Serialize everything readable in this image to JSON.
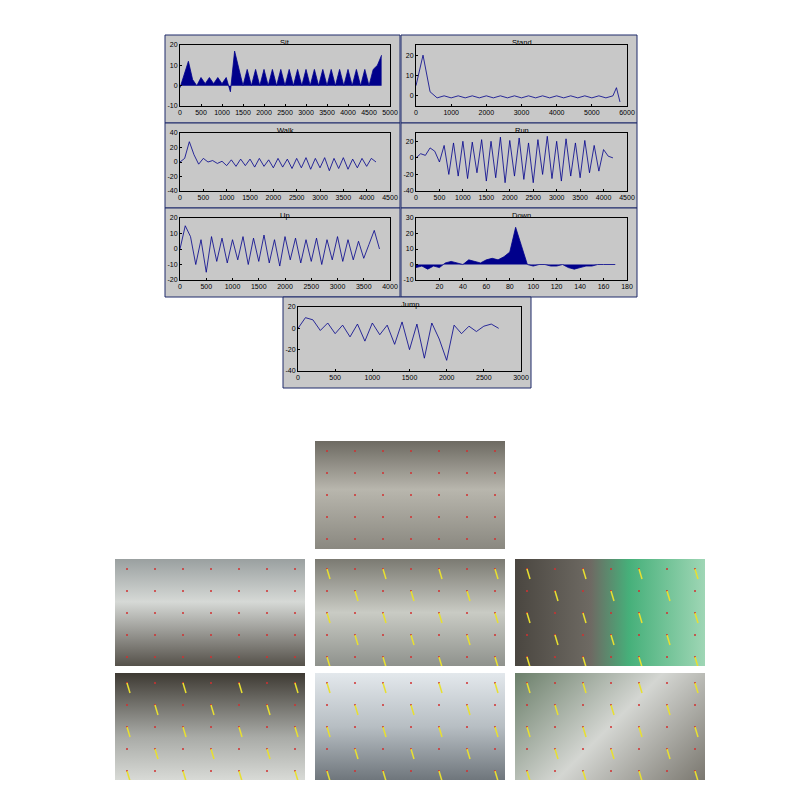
{
  "chart_data": [
    {
      "type": "area",
      "title": "Sit",
      "color": "#00008b",
      "x": [
        0,
        100,
        200,
        300,
        400,
        500,
        600,
        700,
        800,
        900,
        1000,
        1100,
        1200,
        1300,
        1400,
        1500,
        1600,
        1700,
        1800,
        1900,
        2000,
        2100,
        2200,
        2300,
        2400,
        2500,
        2600,
        2700,
        2800,
        2900,
        3000,
        3100,
        3200,
        3300,
        3400,
        3500,
        3600,
        3700,
        3800,
        3900,
        4000,
        4100,
        4200,
        4300,
        4400,
        4500,
        4600,
        4700,
        4800
      ],
      "values": [
        -1,
        5,
        12,
        3,
        0,
        4,
        1,
        4,
        1,
        4,
        1,
        4,
        -3,
        17,
        8,
        0,
        8,
        0,
        8,
        0,
        8,
        0,
        8,
        0,
        8,
        0,
        8,
        0,
        8,
        0,
        8,
        0,
        8,
        0,
        8,
        0,
        8,
        0,
        8,
        0,
        8,
        0,
        8,
        0,
        8,
        0,
        8,
        10,
        15
      ],
      "xlim": [
        0,
        5000
      ],
      "xticks": [
        0,
        500,
        1000,
        1500,
        2000,
        2500,
        3000,
        3500,
        4000,
        4500,
        5000
      ],
      "ylim": [
        -10,
        20
      ],
      "yticks": [
        -10,
        0,
        10,
        20
      ]
    },
    {
      "type": "line",
      "title": "Stand",
      "color": "#00008b",
      "x": [
        0,
        200,
        400,
        600,
        800,
        1000,
        1200,
        1400,
        1600,
        1800,
        2000,
        2200,
        2400,
        2600,
        2800,
        3000,
        3200,
        3400,
        3600,
        3800,
        4000,
        4200,
        4400,
        4600,
        4800,
        5000,
        5200,
        5400,
        5600,
        5700,
        5800
      ],
      "values": [
        5,
        20,
        2,
        -1,
        0,
        -1,
        0,
        -1,
        0,
        -1,
        0,
        -1,
        0,
        -1,
        0,
        -1,
        0,
        -1,
        0,
        -1,
        0,
        -1,
        0,
        -1,
        0,
        -1,
        0,
        -1,
        0,
        4,
        -3
      ],
      "xlim": [
        0,
        6000
      ],
      "xticks": [
        0,
        1000,
        2000,
        3000,
        4000,
        5000,
        6000
      ],
      "ylim": [
        -5,
        25
      ],
      "yticks": [
        0,
        10,
        20
      ]
    },
    {
      "type": "line",
      "title": "Walk",
      "color": "#00008b",
      "x": [
        0,
        100,
        200,
        300,
        400,
        500,
        600,
        700,
        800,
        900,
        1000,
        1100,
        1200,
        1300,
        1400,
        1500,
        1600,
        1700,
        1800,
        1900,
        2000,
        2100,
        2200,
        2300,
        2400,
        2500,
        2600,
        2700,
        2800,
        2900,
        3000,
        3100,
        3200,
        3300,
        3400,
        3500,
        3600,
        3700,
        3800,
        3900,
        4000,
        4100,
        4200
      ],
      "values": [
        0,
        5,
        28,
        10,
        -3,
        5,
        0,
        2,
        -2,
        1,
        -5,
        3,
        -6,
        4,
        -5,
        4,
        -7,
        5,
        -6,
        3,
        -8,
        5,
        -7,
        4,
        -9,
        5,
        -8,
        6,
        -10,
        5,
        -8,
        6,
        -12,
        5,
        -9,
        6,
        -10,
        4,
        -8,
        5,
        -6,
        5,
        0
      ],
      "xlim": [
        0,
        4500
      ],
      "xticks": [
        0,
        500,
        1000,
        1500,
        2000,
        2500,
        3000,
        3500,
        4000,
        4500
      ],
      "ylim": [
        -40,
        40
      ],
      "yticks": [
        -40,
        -20,
        0,
        20,
        40
      ]
    },
    {
      "type": "line",
      "title": "Run",
      "color": "#00008b",
      "x": [
        0,
        100,
        200,
        300,
        400,
        500,
        600,
        700,
        800,
        900,
        1000,
        1100,
        1200,
        1300,
        1400,
        1500,
        1600,
        1700,
        1800,
        1900,
        2000,
        2100,
        2200,
        2300,
        2400,
        2500,
        2600,
        2700,
        2800,
        2900,
        3000,
        3100,
        3200,
        3300,
        3400,
        3500,
        3600,
        3700,
        3800,
        3900,
        4000,
        4100,
        4200
      ],
      "values": [
        0,
        5,
        3,
        12,
        8,
        -5,
        15,
        -20,
        18,
        -22,
        20,
        -25,
        19,
        -18,
        22,
        -28,
        20,
        -24,
        25,
        -30,
        21,
        -22,
        24,
        -26,
        18,
        -30,
        22,
        -20,
        26,
        -25,
        20,
        -28,
        23,
        -22,
        18,
        -24,
        21,
        -18,
        15,
        -16,
        10,
        2,
        0
      ],
      "xlim": [
        0,
        4500
      ],
      "xticks": [
        0,
        500,
        1000,
        1500,
        2000,
        2500,
        3000,
        3500,
        4000,
        4500
      ],
      "ylim": [
        -40,
        30
      ],
      "yticks": [
        -40,
        -20,
        0,
        20
      ]
    },
    {
      "type": "line",
      "title": "Up",
      "color": "#00008b",
      "x": [
        0,
        100,
        200,
        300,
        400,
        500,
        600,
        700,
        800,
        900,
        1000,
        1100,
        1200,
        1300,
        1400,
        1500,
        1600,
        1700,
        1800,
        1900,
        2000,
        2100,
        2200,
        2300,
        2400,
        2500,
        2600,
        2700,
        2800,
        2900,
        3000,
        3100,
        3200,
        3300,
        3400,
        3500,
        3600,
        3700,
        3800
      ],
      "values": [
        0,
        15,
        8,
        -10,
        6,
        -15,
        8,
        -8,
        7,
        -9,
        6,
        -7,
        8,
        -10,
        7,
        -8,
        9,
        -9,
        6,
        -11,
        8,
        -7,
        7,
        -9,
        6,
        -8,
        7,
        -10,
        6,
        -7,
        8,
        -8,
        6,
        -7,
        5,
        -6,
        3,
        12,
        0
      ],
      "xlim": [
        0,
        4000
      ],
      "xticks": [
        0,
        500,
        1000,
        1500,
        2000,
        2500,
        3000,
        3500,
        4000
      ],
      "ylim": [
        -20,
        20
      ],
      "yticks": [
        -20,
        -10,
        0,
        10,
        20
      ]
    },
    {
      "type": "area",
      "title": "Down",
      "color": "#00008b",
      "x": [
        0,
        5,
        10,
        15,
        20,
        25,
        30,
        35,
        40,
        45,
        50,
        55,
        60,
        65,
        70,
        75,
        80,
        85,
        90,
        95,
        100,
        105,
        110,
        115,
        120,
        125,
        130,
        135,
        140,
        145,
        150,
        155,
        160,
        165,
        170
      ],
      "values": [
        -2,
        -1,
        -3,
        -1,
        -2,
        1,
        2,
        1,
        0,
        3,
        2,
        1,
        3,
        4,
        3,
        5,
        8,
        24,
        12,
        0,
        -1,
        0,
        0,
        -1,
        -1,
        0,
        -2,
        -3,
        -2,
        -1,
        -1,
        0,
        0,
        0,
        0
      ],
      "xlim": [
        0,
        180
      ],
      "xticks": [
        20,
        40,
        60,
        80,
        100,
        120,
        140,
        160,
        180
      ],
      "ylim": [
        -10,
        30
      ],
      "yticks": [
        -10,
        0,
        10,
        20,
        30
      ]
    },
    {
      "type": "line",
      "title": "Jump",
      "color": "#00008b",
      "x": [
        0,
        100,
        200,
        300,
        400,
        500,
        600,
        700,
        800,
        900,
        1000,
        1100,
        1200,
        1300,
        1400,
        1500,
        1600,
        1700,
        1800,
        1900,
        2000,
        2100,
        2200,
        2300,
        2400,
        2500,
        2600,
        2700
      ],
      "values": [
        0,
        10,
        8,
        -2,
        5,
        -5,
        3,
        -8,
        4,
        -12,
        5,
        -6,
        3,
        -15,
        6,
        -20,
        4,
        -28,
        5,
        -10,
        -30,
        3,
        -5,
        2,
        -3,
        2,
        4,
        0
      ],
      "xlim": [
        0,
        3000
      ],
      "xticks": [
        0,
        500,
        1000,
        1500,
        2000,
        2500,
        3000
      ],
      "ylim": [
        -40,
        20
      ],
      "yticks": [
        -40,
        -20,
        0,
        20
      ]
    }
  ]
}
